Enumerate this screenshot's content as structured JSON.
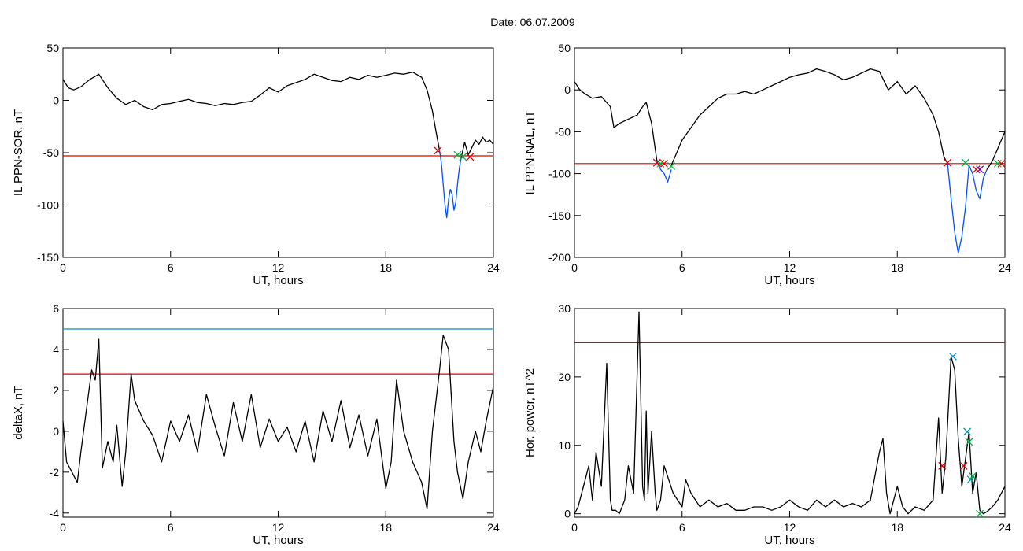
{
  "title": "Date:  06.07.2009",
  "colors": {
    "black": "#000000",
    "red": "#e00000",
    "blue": "#0050ff",
    "cyan": "#008fb0",
    "green": "#00b040",
    "purple": "#6a00b0"
  },
  "chart_data": [
    {
      "type": "line",
      "xlabel": "UT, hours",
      "ylabel": "IL PPN-SOR, nT",
      "xlim": [
        0,
        24
      ],
      "ylim": [
        -150,
        50
      ],
      "xticks": [
        "0",
        "6",
        "12",
        "18",
        "24"
      ],
      "yticks": [
        "-150",
        "-100",
        "-50",
        "0",
        "50"
      ],
      "threshold": {
        "value": -53,
        "color": "red"
      },
      "series": [
        {
          "color": "black",
          "x": [
            0,
            0.3,
            0.6,
            1,
            1.5,
            2,
            2.5,
            3,
            3.5,
            4,
            4.5,
            5,
            5.5,
            6,
            6.5,
            7,
            7.5,
            8,
            8.5,
            9,
            9.5,
            10,
            10.5,
            11,
            11.5,
            12,
            12.5,
            13,
            13.5,
            14,
            14.5,
            15,
            15.5,
            16,
            16.5,
            17,
            17.5,
            18,
            18.5,
            19,
            19.5,
            20,
            20.3,
            20.6,
            20.8,
            21
          ],
          "y": [
            20,
            12,
            10,
            13,
            20,
            25,
            12,
            2,
            -4,
            0,
            -6,
            -9,
            -4,
            -3,
            -1,
            1,
            -2,
            -3,
            -5,
            -3,
            -4,
            -2,
            -1,
            5,
            12,
            8,
            14,
            17,
            20,
            25,
            22,
            19,
            18,
            22,
            20,
            24,
            22,
            24,
            26,
            25,
            27,
            22,
            10,
            -10,
            -30,
            -48
          ]
        },
        {
          "color": "blue",
          "x": [
            21,
            21.1,
            21.2,
            21.3,
            21.4,
            21.5,
            21.6,
            21.7,
            21.8,
            21.9,
            22,
            22.1,
            22.2
          ],
          "y": [
            -48,
            -60,
            -80,
            -100,
            -112,
            -95,
            -85,
            -90,
            -105,
            -98,
            -80,
            -65,
            -55
          ]
        },
        {
          "color": "black",
          "x": [
            22.2,
            22.4,
            22.6,
            22.8,
            23,
            23.2,
            23.4,
            23.6,
            23.8,
            24
          ],
          "y": [
            -55,
            -40,
            -52,
            -45,
            -38,
            -42,
            -35,
            -40,
            -38,
            -42
          ]
        }
      ],
      "markers": [
        {
          "x": 20.9,
          "y": -48,
          "color": "red"
        },
        {
          "x": 22.0,
          "y": -52,
          "color": "green"
        },
        {
          "x": 22.3,
          "y": -54,
          "color": "green"
        },
        {
          "x": 22.7,
          "y": -54,
          "color": "red"
        }
      ]
    },
    {
      "type": "line",
      "xlabel": "UT, hours",
      "ylabel": "IL PPN-NAL, nT",
      "xlim": [
        0,
        24
      ],
      "ylim": [
        -200,
        50
      ],
      "xticks": [
        "0",
        "6",
        "12",
        "18",
        "24"
      ],
      "yticks": [
        "-200",
        "-150",
        "-100",
        "-50",
        "0",
        "50"
      ],
      "threshold": {
        "value": -88,
        "color": "red"
      },
      "series": [
        {
          "color": "black",
          "x": [
            0,
            0.3,
            0.6,
            1,
            1.5,
            2,
            2.2,
            2.5,
            3,
            3.5,
            3.8,
            4,
            4.3,
            4.6
          ],
          "y": [
            10,
            0,
            -5,
            -10,
            -8,
            -20,
            -45,
            -40,
            -35,
            -30,
            -20,
            -15,
            -40,
            -85
          ]
        },
        {
          "color": "blue",
          "x": [
            4.6,
            4.8,
            5,
            5.2,
            5.4
          ],
          "y": [
            -85,
            -95,
            -100,
            -110,
            -95
          ]
        },
        {
          "color": "black",
          "x": [
            5.4,
            6,
            6.5,
            7,
            7.5,
            8,
            8.5,
            9,
            9.5,
            10,
            10.5,
            11,
            11.5,
            12,
            12.5,
            13,
            13.5,
            14,
            14.5,
            15,
            15.5,
            16,
            16.5,
            17,
            17.5,
            18,
            18.5,
            19,
            19.5,
            20,
            20.3,
            20.6,
            20.8
          ],
          "y": [
            -90,
            -60,
            -45,
            -30,
            -20,
            -10,
            -5,
            -5,
            -2,
            -5,
            0,
            5,
            10,
            15,
            18,
            20,
            25,
            22,
            18,
            12,
            15,
            20,
            25,
            22,
            0,
            10,
            -5,
            5,
            -10,
            -30,
            -50,
            -80,
            -88
          ]
        },
        {
          "color": "blue",
          "x": [
            20.8,
            21,
            21.2,
            21.4,
            21.6,
            21.8,
            22,
            22.2,
            22.4,
            22.6,
            22.8,
            23
          ],
          "y": [
            -88,
            -130,
            -170,
            -195,
            -175,
            -140,
            -90,
            -100,
            -120,
            -130,
            -105,
            -95
          ]
        },
        {
          "color": "black",
          "x": [
            23,
            23.3,
            23.6,
            23.8,
            24
          ],
          "y": [
            -95,
            -85,
            -70,
            -60,
            -50
          ]
        }
      ],
      "markers": [
        {
          "x": 4.6,
          "y": -87,
          "color": "red"
        },
        {
          "x": 4.8,
          "y": -88,
          "color": "green"
        },
        {
          "x": 5.0,
          "y": -88,
          "color": "red"
        },
        {
          "x": 5.4,
          "y": -91,
          "color": "green"
        },
        {
          "x": 20.8,
          "y": -87,
          "color": "red"
        },
        {
          "x": 21.8,
          "y": -87,
          "color": "green"
        },
        {
          "x": 22.4,
          "y": -95,
          "color": "red"
        },
        {
          "x": 22.6,
          "y": -95,
          "color": "purple"
        },
        {
          "x": 23.6,
          "y": -88,
          "color": "green"
        },
        {
          "x": 23.8,
          "y": -88,
          "color": "red"
        }
      ]
    },
    {
      "type": "line",
      "xlabel": "UT, hours",
      "ylabel": "deltaX, nT",
      "xlim": [
        0,
        24
      ],
      "ylim": [
        -4.2,
        6
      ],
      "xticks": [
        "0",
        "6",
        "12",
        "18",
        "24"
      ],
      "yticks": [
        "-4",
        "-2",
        "0",
        "2",
        "4",
        "6"
      ],
      "thresholds": [
        {
          "value": 5.0,
          "color": "cyan"
        },
        {
          "value": 2.8,
          "color": "red"
        }
      ],
      "series": [
        {
          "color": "black",
          "x": [
            0,
            0.2,
            0.5,
            0.8,
            1,
            1.3,
            1.6,
            1.8,
            2,
            2.2,
            2.5,
            2.8,
            3,
            3.3,
            3.5,
            3.8,
            4,
            4.5,
            5,
            5.5,
            6,
            6.5,
            7,
            7.5,
            8,
            8.5,
            9,
            9.5,
            10,
            10.5,
            11,
            11.5,
            12,
            12.5,
            13,
            13.5,
            14,
            14.5,
            15,
            15.5,
            16,
            16.5,
            17,
            17.5,
            18,
            18.3,
            18.6,
            19,
            19.5,
            20,
            20.3,
            20.6,
            21,
            21.2,
            21.5,
            21.8,
            22,
            22.3,
            22.6,
            23,
            23.3,
            23.6,
            24
          ],
          "y": [
            0.5,
            -1.5,
            -2,
            -2.5,
            -1,
            1,
            3,
            2.5,
            4.5,
            -1.8,
            -0.5,
            -1.5,
            0.3,
            -2.7,
            -1,
            2.8,
            1.5,
            0.5,
            -0.2,
            -1.5,
            0.5,
            -0.5,
            0.8,
            -1,
            1.8,
            0.2,
            -1.2,
            1.4,
            -0.5,
            1.8,
            -0.8,
            0.6,
            -0.5,
            0.2,
            -1,
            0.5,
            -1.5,
            1,
            -0.5,
            1.5,
            -0.8,
            0.8,
            -1.2,
            0.6,
            -2.8,
            -1.5,
            2.5,
            0,
            -1.5,
            -2.5,
            -3.8,
            0,
            3,
            4.7,
            4,
            -0.5,
            -2,
            -3.3,
            -1.5,
            0,
            -1,
            0.5,
            2.2
          ]
        }
      ],
      "markers": []
    },
    {
      "type": "line",
      "xlabel": "UT, hours",
      "ylabel": "Hor. power, nT^2",
      "xlim": [
        0,
        24
      ],
      "ylim": [
        -0.5,
        30
      ],
      "xticks": [
        "0",
        "6",
        "12",
        "18",
        "24"
      ],
      "yticks": [
        "0",
        "10",
        "20",
        "30"
      ],
      "threshold": {
        "value": 25,
        "color": "red"
      },
      "series": [
        {
          "color": "black",
          "x": [
            0,
            0.2,
            0.5,
            0.8,
            1,
            1.2,
            1.5,
            1.8,
            2,
            2.1,
            2.3,
            2.5,
            2.8,
            3,
            3.3,
            3.6,
            3.8,
            3.9,
            4,
            4.1,
            4.3,
            4.5,
            4.6,
            4.8,
            5,
            5.5,
            6,
            6.2,
            6.5,
            7,
            7.5,
            8,
            8.5,
            9,
            9.5,
            10,
            10.5,
            11,
            11.5,
            12,
            12.5,
            13,
            13.5,
            14,
            14.5,
            15,
            15.5,
            16,
            16.5,
            17,
            17.2,
            17.4,
            17.6,
            18,
            18.3,
            18.6,
            19,
            19.5,
            20,
            20.3,
            20.5,
            20.7,
            21,
            21.2,
            21.4,
            21.6,
            21.8,
            22,
            22.2,
            22.4,
            22.6,
            22.8,
            23,
            23.3,
            23.6,
            24
          ],
          "y": [
            0,
            1,
            4,
            7,
            2,
            9,
            4,
            22,
            2,
            0.5,
            0.5,
            0,
            2,
            7,
            3,
            29.5,
            4,
            2,
            15,
            3,
            12,
            3,
            0.5,
            2,
            7,
            3,
            1,
            5,
            3,
            1,
            2,
            1,
            1.5,
            0.5,
            0.5,
            1,
            1,
            0.5,
            1,
            2,
            1,
            0.5,
            2,
            1,
            2,
            1,
            1.5,
            1,
            2,
            9,
            11,
            3,
            0,
            4,
            1,
            0,
            1,
            0.5,
            2,
            14,
            3,
            8,
            23,
            21,
            11,
            4,
            8,
            12,
            3,
            6,
            0.5,
            0,
            0.3,
            1,
            2,
            4
          ]
        }
      ],
      "markers": [
        {
          "x": 20.5,
          "y": 7,
          "color": "red"
        },
        {
          "x": 21.1,
          "y": 23,
          "color": "cyan"
        },
        {
          "x": 21.7,
          "y": 7,
          "color": "red"
        },
        {
          "x": 21.9,
          "y": 12,
          "color": "cyan"
        },
        {
          "x": 22.0,
          "y": 10.5,
          "color": "green"
        },
        {
          "x": 22.1,
          "y": 5,
          "color": "cyan"
        },
        {
          "x": 22.2,
          "y": 5.5,
          "color": "green"
        },
        {
          "x": 22.6,
          "y": 0,
          "color": "green"
        }
      ]
    }
  ]
}
